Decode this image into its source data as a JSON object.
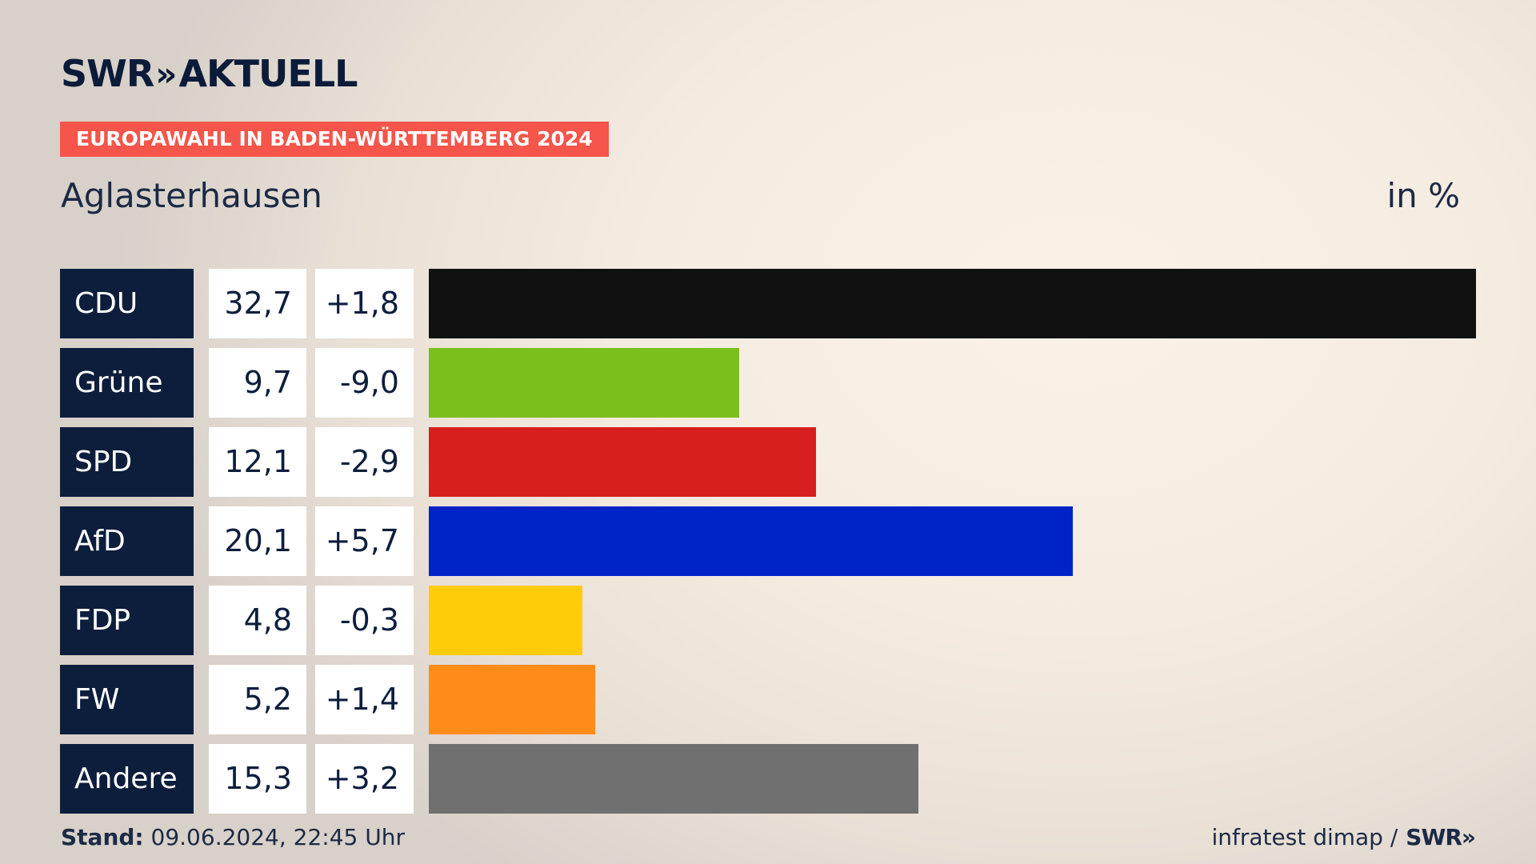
{
  "header": {
    "logo_text": "SWR",
    "logo_chevrons": "»",
    "logo_label": "AKTUELL",
    "badge": "EUROPAWAHL IN BADEN-WÜRTTEMBERG 2024",
    "subtitle": "Aglasterhausen",
    "unit": "in %"
  },
  "footer": {
    "stand_label": "Stand:",
    "stand_value": "09.06.2024, 22:45 Uhr",
    "source": "infratest dimap /",
    "brand": "SWR»"
  },
  "chart_data": {
    "type": "bar",
    "orientation": "horizontal",
    "title": "Aglasterhausen",
    "unit": "in %",
    "max_value": 32.7,
    "categories": [
      "CDU",
      "Grüne",
      "SPD",
      "AfD",
      "FDP",
      "FW",
      "Andere"
    ],
    "values": [
      32.7,
      9.7,
      12.1,
      20.1,
      4.8,
      5.2,
      15.3
    ],
    "value_labels": [
      "32,7",
      "9,7",
      "12,1",
      "20,1",
      "4,8",
      "5,2",
      "15,3"
    ],
    "diff_labels": [
      "+1,8",
      "-9,0",
      "-2,9",
      "+5,7",
      "-0,3",
      "+1,4",
      "+3,2"
    ],
    "colors": [
      "#111111",
      "#7abf1c",
      "#d71f1f",
      "#0023c8",
      "#ffcc09",
      "#ff8c19",
      "#707070"
    ]
  }
}
